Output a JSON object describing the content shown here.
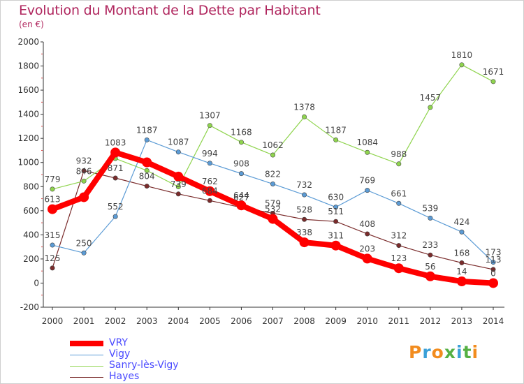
{
  "title": "Evolution du Montant de la Dette par Habitant",
  "unit": "(en €)",
  "logo": {
    "text": "Proxiti",
    "colors": [
      "#f28c1e",
      "#3aa0d8",
      "#f28c1e",
      "#55b043",
      "#3aa0d8",
      "#55b043",
      "#f28c1e"
    ]
  },
  "chart_data": {
    "type": "line",
    "x": [
      "2000",
      "2001",
      "2002",
      "2003",
      "2004",
      "2005",
      "2006",
      "2007",
      "2008",
      "2009",
      "2010",
      "2011",
      "2012",
      "2013",
      "2014"
    ],
    "ylim": [
      -200,
      2000
    ],
    "yticks": [
      "2000",
      "1800",
      "1600",
      "1400",
      "1200",
      "1000",
      "800",
      "600",
      "400",
      "200",
      "0",
      "-200"
    ],
    "grid": false,
    "legend": "bottom-left",
    "series": [
      {
        "name": "VRY",
        "color": "#ff0000",
        "values": [
          613,
          712,
          1083,
          1001,
          883,
          762,
          644,
          532,
          338,
          311,
          203,
          123,
          56,
          14,
          0
        ],
        "labels": [
          "613",
          "",
          "1083",
          "",
          "",
          "762",
          "644",
          "532",
          "338",
          "311",
          "203",
          "123",
          "56",
          "14",
          "0"
        ]
      },
      {
        "name": "Vigy",
        "color": "#5b9bd5",
        "values": [
          315,
          250,
          552,
          1187,
          1087,
          994,
          908,
          822,
          732,
          630,
          769,
          661,
          539,
          424,
          173
        ],
        "labels": [
          "315",
          "250",
          "552",
          "1187",
          "1087",
          "994",
          "908",
          "822",
          "732",
          "630",
          "769",
          "661",
          "539",
          "424",
          "173"
        ]
      },
      {
        "name": "Sanry-lès-Vigy",
        "color": "#8fd44e",
        "values": [
          779,
          846,
          1033,
          933,
          799,
          1307,
          1168,
          1062,
          1378,
          1187,
          1084,
          988,
          1457,
          1810,
          1671
        ],
        "labels": [
          "779",
          "846",
          "",
          "",
          "",
          "1307",
          "1168",
          "1062",
          "1378",
          "1187",
          "1084",
          "988",
          "1457",
          "1810",
          "1671"
        ]
      },
      {
        "name": "Hayes",
        "color": "#7a2b2b",
        "values": [
          125,
          932,
          871,
          804,
          739,
          684,
          627,
          579,
          528,
          511,
          408,
          312,
          233,
          168,
          113
        ],
        "labels": [
          "125",
          "932",
          "871",
          "804",
          "739",
          "684",
          "627",
          "579",
          "528",
          "511",
          "408",
          "312",
          "233",
          "168",
          "113"
        ]
      }
    ]
  }
}
